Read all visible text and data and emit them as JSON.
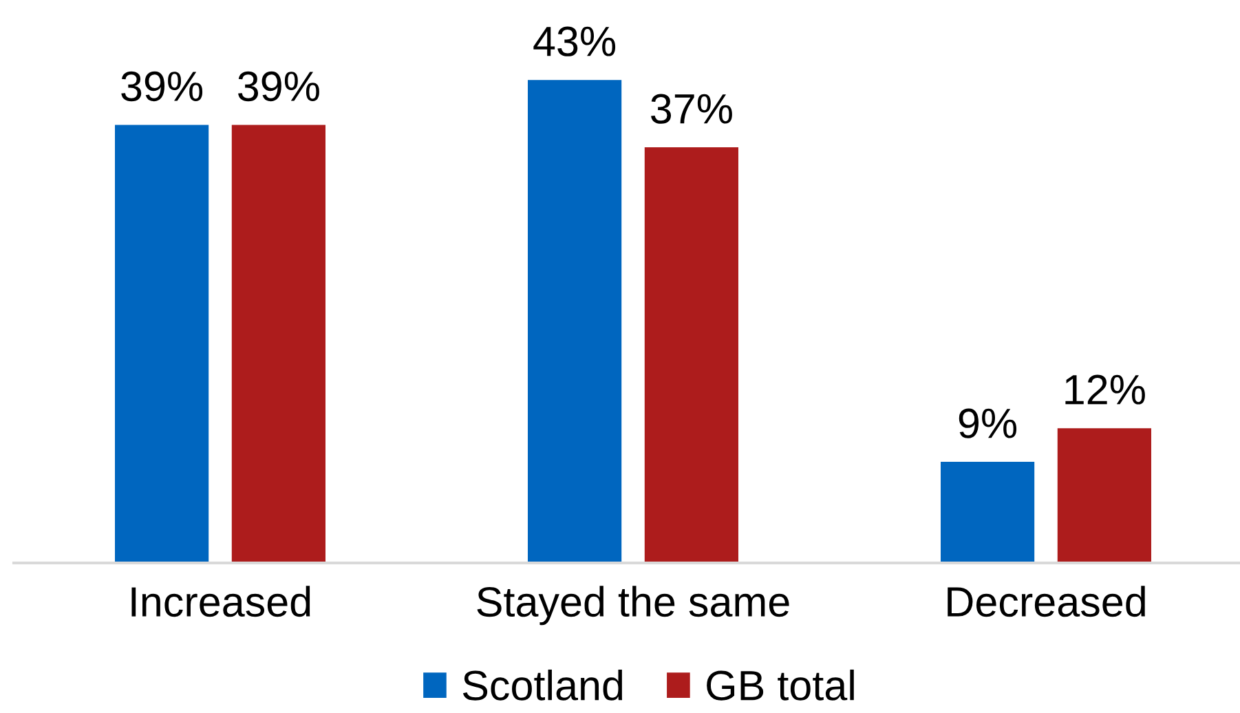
{
  "chart_data": {
    "type": "bar",
    "categories": [
      "Increased",
      "Stayed the same",
      "Decreased"
    ],
    "series": [
      {
        "name": "Scotland",
        "color": "#0066bf",
        "values": [
          39,
          43,
          9
        ],
        "value_labels": [
          "39%",
          "43%",
          "9%"
        ]
      },
      {
        "name": "GB total",
        "color": "#ad1c1c",
        "values": [
          39,
          37,
          12
        ],
        "value_labels": [
          "39%",
          "37%",
          "12%"
        ]
      }
    ],
    "legend": "bottom"
  }
}
